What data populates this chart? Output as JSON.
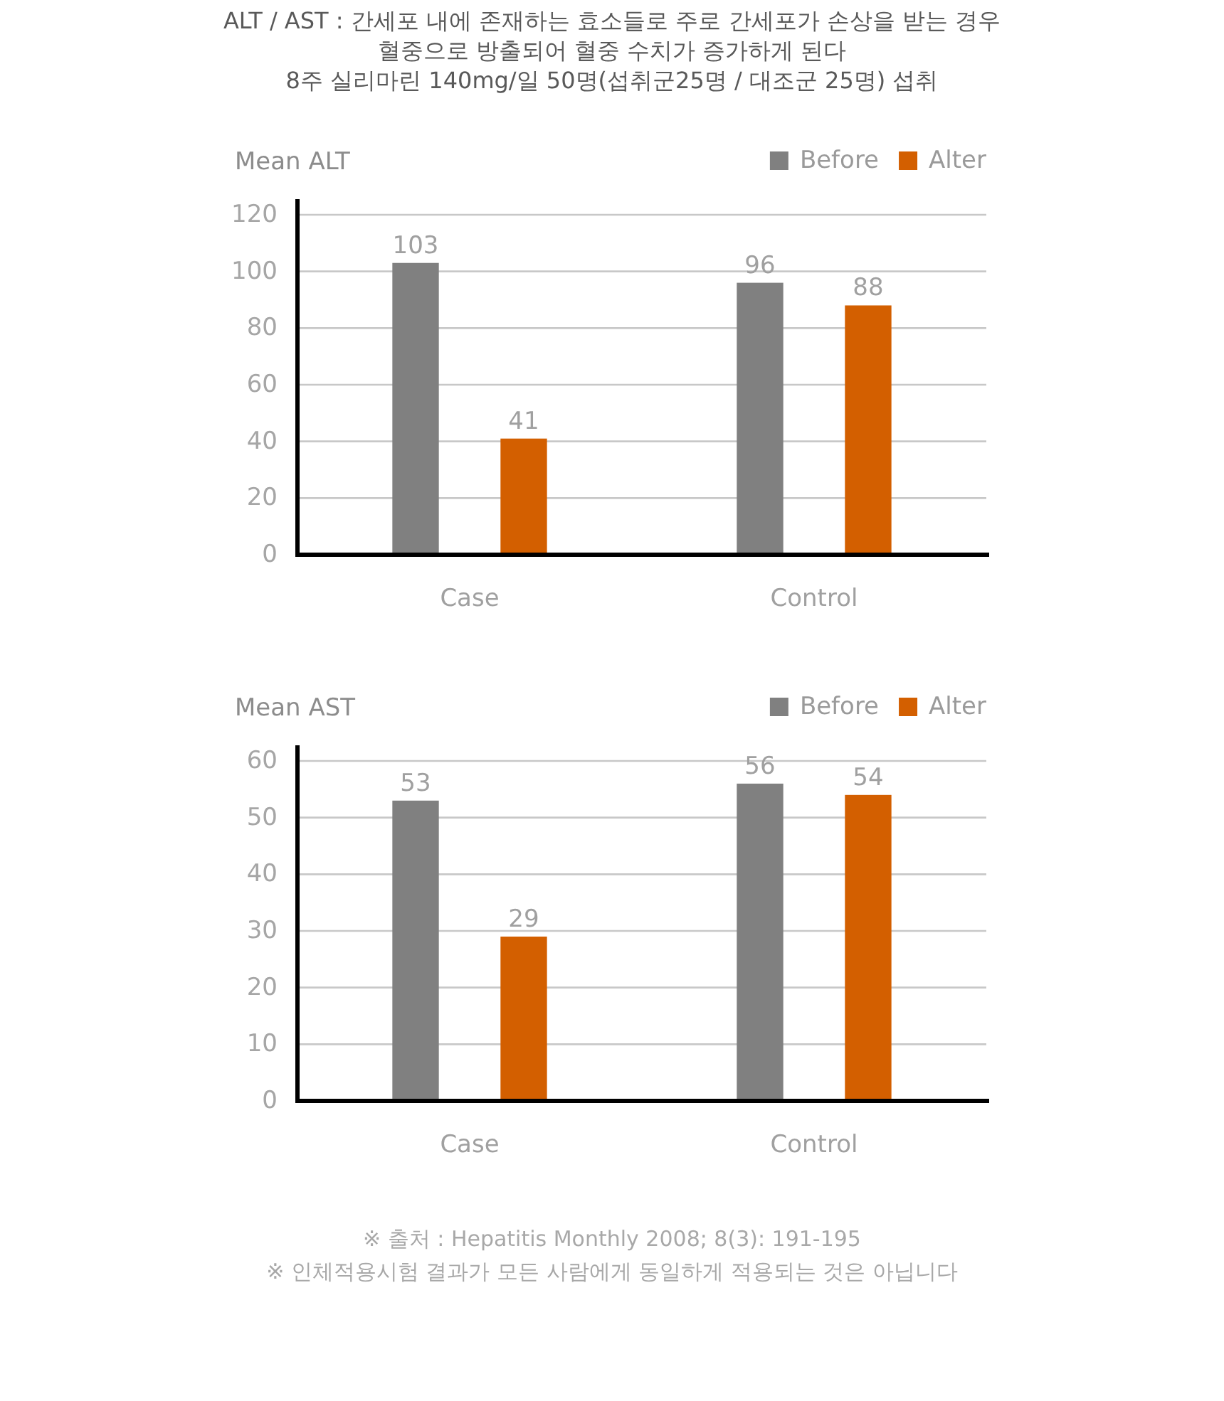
{
  "chart_data": [
    {
      "type": "bar",
      "title": "ALT / AST : 간세포 내에 존재하는 효소들로 주로 간세포가 손상을 받는 경우 혈중으로 방출되어 혈중 수치가 증가하게 된다",
      "subtitle": "8주 실리마린 140mg/일 50명(섭취군25명 / 대조군 25명) 섭취",
      "ylabel": "Mean ALT",
      "categories": [
        "Case",
        "Control"
      ],
      "series": [
        {
          "name": "Before",
          "color": "#808080",
          "values": [
            103,
            96
          ]
        },
        {
          "name": "Alter",
          "color": "#d35f00",
          "values": [
            41,
            88
          ]
        }
      ],
      "ylim": [
        0,
        120
      ],
      "yticks": [
        0,
        20,
        40,
        60,
        80,
        100,
        120
      ],
      "grid": "y",
      "legend": "top right",
      "data_labels": true
    },
    {
      "type": "bar",
      "ylabel": "Mean AST",
      "categories": [
        "Case",
        "Control"
      ],
      "series": [
        {
          "name": "Before",
          "color": "#808080",
          "values": [
            53,
            56
          ]
        },
        {
          "name": "Alter",
          "color": "#d35f00",
          "values": [
            29,
            54
          ]
        }
      ],
      "ylim": [
        0,
        60
      ],
      "yticks": [
        0,
        10,
        20,
        30,
        40,
        50,
        60
      ],
      "grid": "y",
      "legend": "top right",
      "data_labels": true,
      "annotations": [
        "※ 출처 : Hepatitis Monthly 2008; 8(3): 191-195",
        "※ 인체적용시험 결과가 모든 사람에게 동일하게 적용되는 것은 아닙니다"
      ]
    }
  ]
}
